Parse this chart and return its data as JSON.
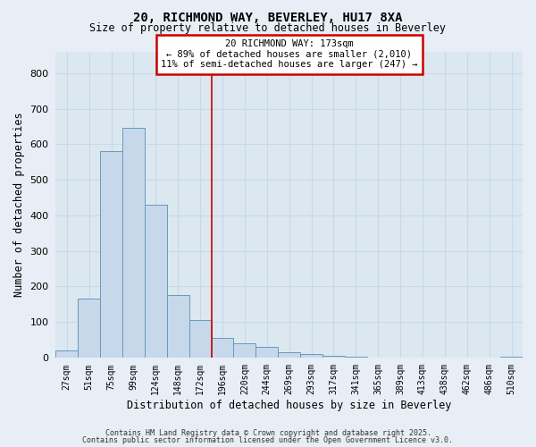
{
  "title1": "20, RICHMOND WAY, BEVERLEY, HU17 8XA",
  "title2": "Size of property relative to detached houses in Beverley",
  "xlabel": "Distribution of detached houses by size in Beverley",
  "ylabel": "Number of detached properties",
  "categories": [
    "27sqm",
    "51sqm",
    "75sqm",
    "99sqm",
    "124sqm",
    "148sqm",
    "172sqm",
    "196sqm",
    "220sqm",
    "244sqm",
    "269sqm",
    "293sqm",
    "317sqm",
    "341sqm",
    "365sqm",
    "389sqm",
    "413sqm",
    "438sqm",
    "462sqm",
    "486sqm",
    "510sqm"
  ],
  "values": [
    20,
    165,
    580,
    645,
    430,
    175,
    105,
    55,
    40,
    30,
    15,
    10,
    5,
    3,
    0,
    0,
    0,
    0,
    0,
    0,
    3
  ],
  "bar_color": "#c8d8eb",
  "bar_edge_color": "#6699bb",
  "vline_x_index": 6,
  "vline_color": "#cc0000",
  "annotation_text": "20 RICHMOND WAY: 173sqm\n← 89% of detached houses are smaller (2,010)\n11% of semi-detached houses are larger (247) →",
  "annotation_box_color": "#cc0000",
  "annotation_fill": "#ffffff",
  "ylim": [
    0,
    860
  ],
  "yticks": [
    0,
    100,
    200,
    300,
    400,
    500,
    600,
    700,
    800
  ],
  "grid_color": "#c8d8eb",
  "fig_background_color": "#e8eef5",
  "axes_background_color": "#dce8f0",
  "footer1": "Contains HM Land Registry data © Crown copyright and database right 2025.",
  "footer2": "Contains public sector information licensed under the Open Government Licence v3.0."
}
